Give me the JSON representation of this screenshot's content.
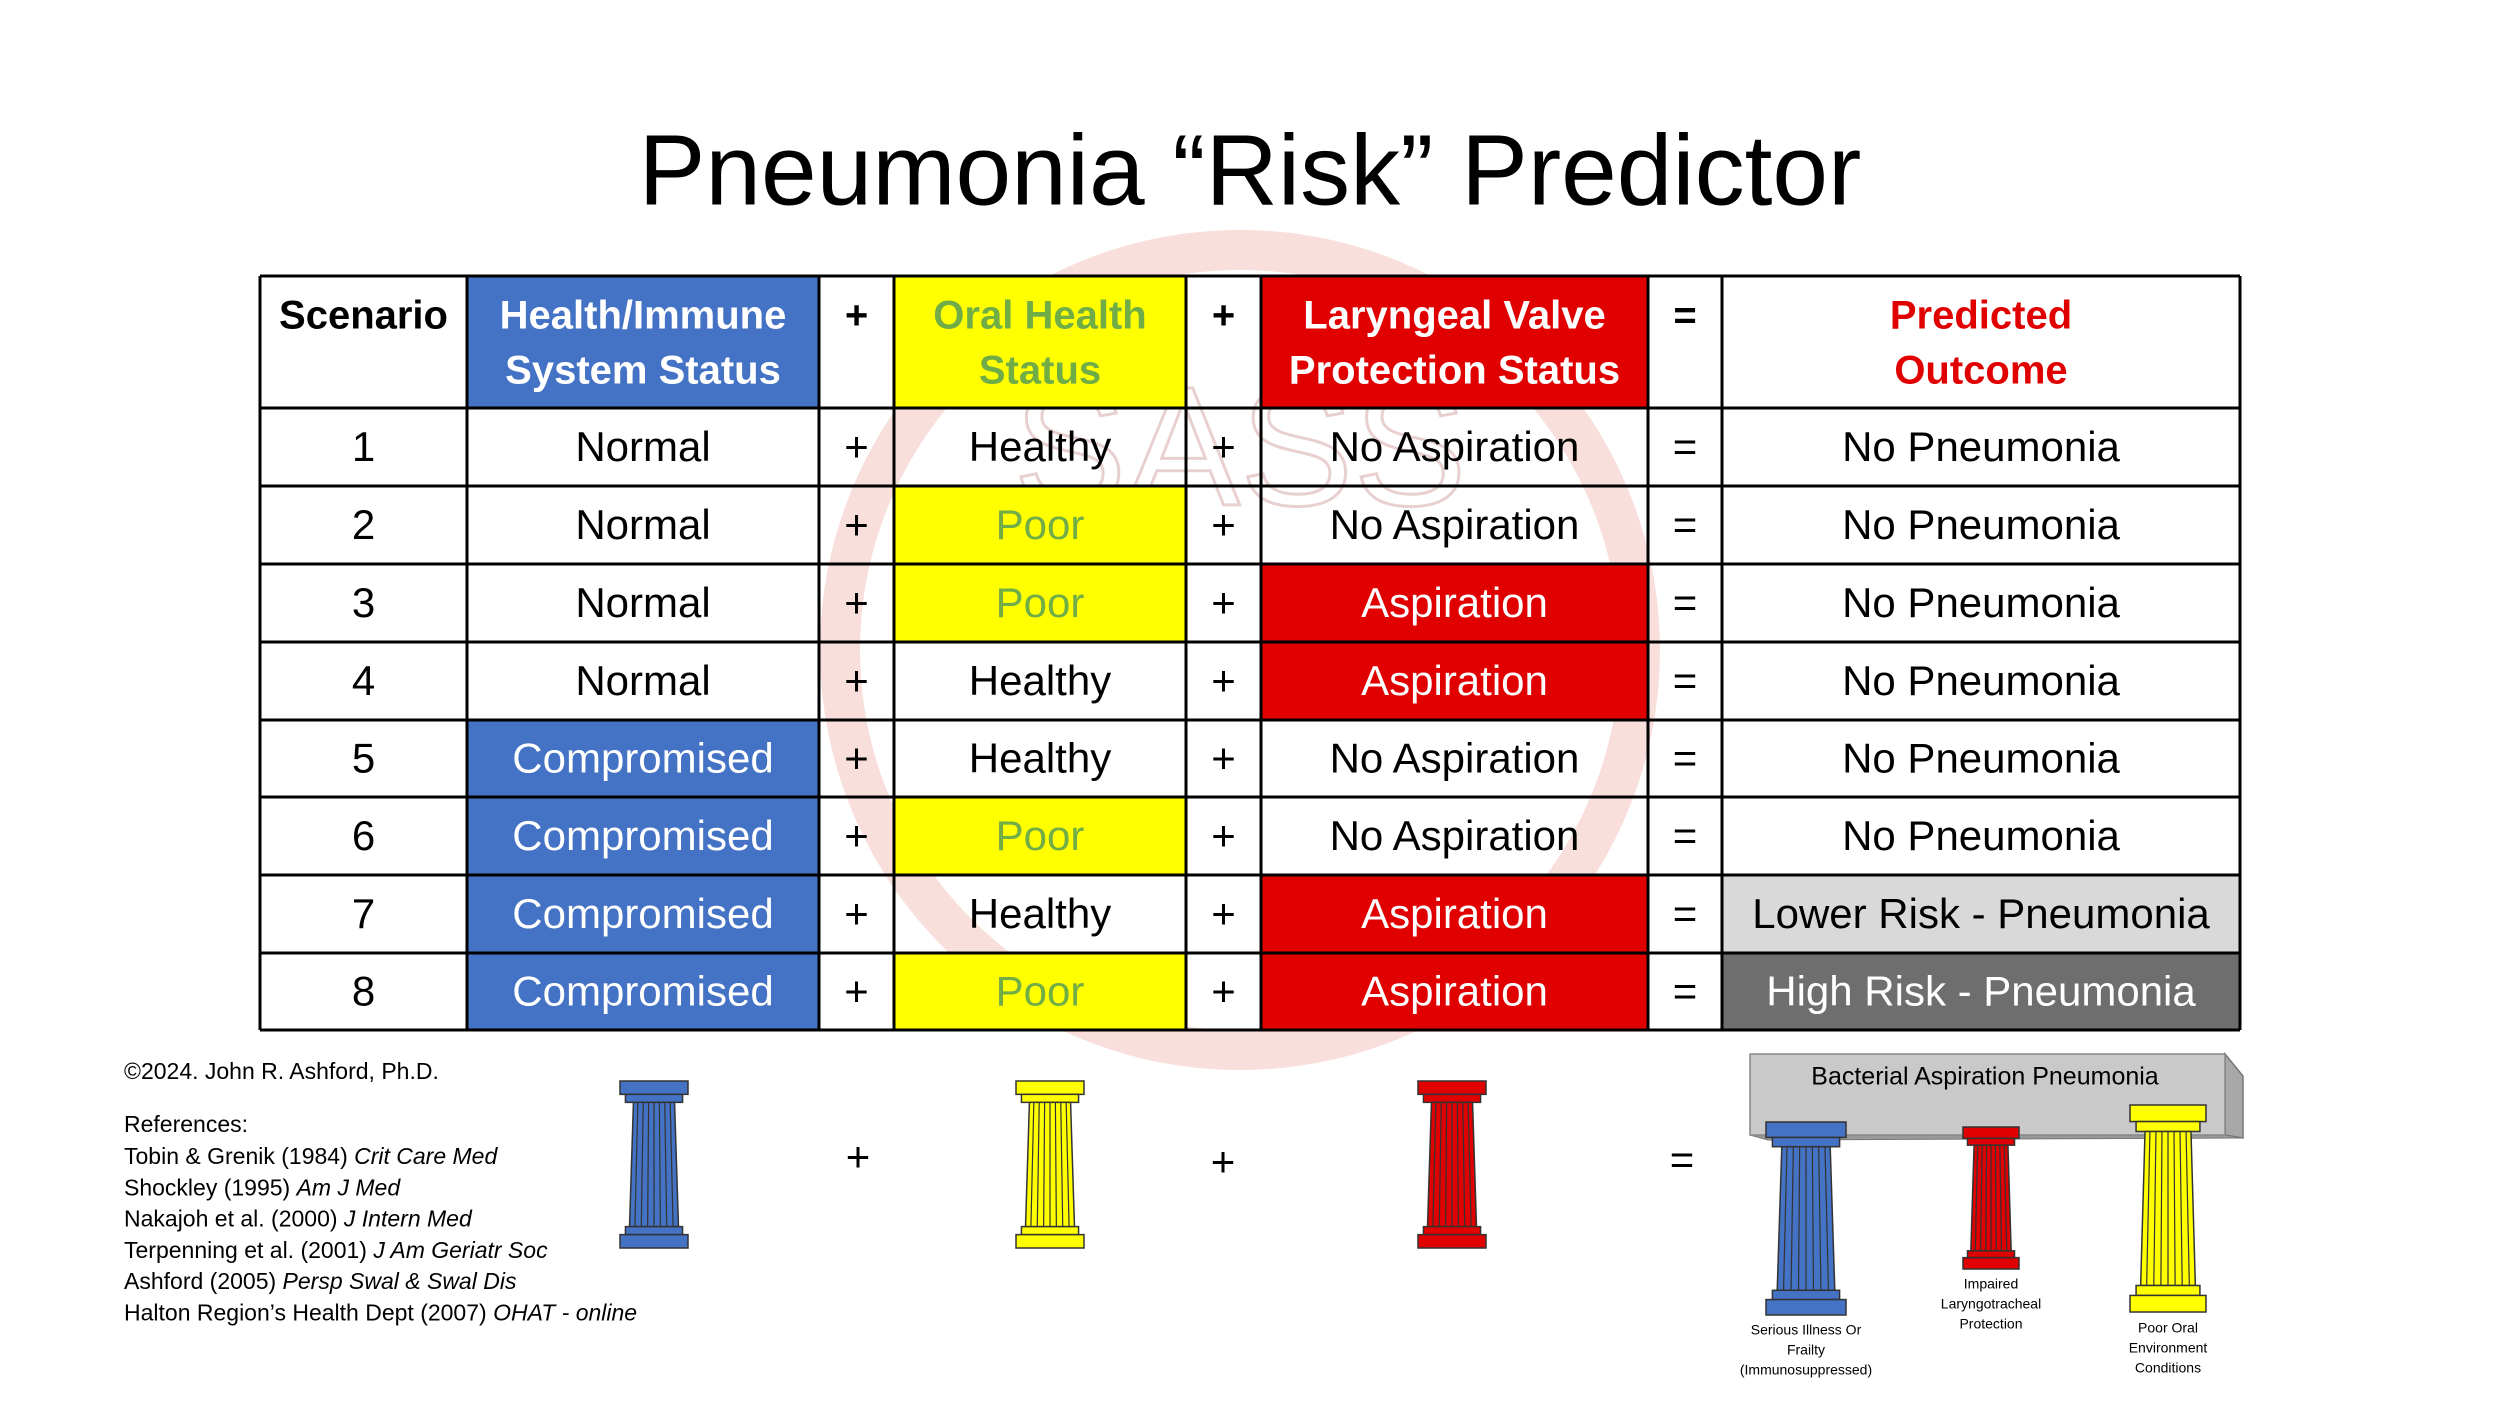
{
  "title": "Pneumonia “Risk” Predictor",
  "watermark": "SASS",
  "table": {
    "header": [
      [
        "Scenario"
      ],
      [
        "Health/Immune",
        "System Status"
      ],
      [
        "+"
      ],
      [
        "Oral Health",
        "Status"
      ],
      [
        "+"
      ],
      [
        "Laryngeal Valve",
        "Protection Status"
      ],
      [
        "="
      ],
      [
        "Predicted",
        "Outcome"
      ]
    ],
    "rows": [
      [
        1,
        "Normal",
        "+",
        "Healthy",
        "+",
        "No Aspiration",
        "=",
        "No Pneumonia"
      ],
      [
        2,
        "Normal",
        "+",
        "Poor",
        "+",
        "No Aspiration",
        "=",
        "No Pneumonia"
      ],
      [
        3,
        "Normal",
        "+",
        "Poor",
        "+",
        "Aspiration",
        "=",
        "No Pneumonia"
      ],
      [
        4,
        "Normal",
        "+",
        "Healthy",
        "+",
        "Aspiration",
        "=",
        "No Pneumonia"
      ],
      [
        5,
        "Compromised",
        "+",
        "Healthy",
        "+",
        "No Aspiration",
        "=",
        "No Pneumonia"
      ],
      [
        6,
        "Compromised",
        "+",
        "Poor",
        "+",
        "No Aspiration",
        "=",
        "No Pneumonia"
      ],
      [
        7,
        "Compromised",
        "+",
        "Healthy",
        "+",
        "Aspiration",
        "=",
        "Lower Risk - Pneumonia"
      ],
      [
        8,
        "Compromised",
        "+",
        "Poor",
        "+",
        "Aspiration",
        "=",
        "High Risk - Pneumonia"
      ]
    ]
  },
  "copyright": "©2024. John R. Ashford, Ph.D.",
  "references_title": "References:",
  "references": [
    {
      "authors": "Tobin & Grenik (1984)",
      "source": "Crit Care Med"
    },
    {
      "authors": "Shockley (1995)",
      "source": "Am J Med"
    },
    {
      "authors": "Nakajoh et al. (2000)",
      "source": "J Intern Med"
    },
    {
      "authors": "Terpenning et al. (2001)",
      "source": "J Am Geriatr Soc"
    },
    {
      "authors": "Ashford (2005)",
      "source": "Persp Swal & Swal Dis"
    },
    {
      "authors": "Halton Region’s Health Dept (2007)",
      "source": "OHAT - online"
    }
  ],
  "equation": {
    "plus_1": "+",
    "plus_2": "+",
    "equals": "="
  },
  "diagram": {
    "beam": "Bacterial Aspiration Pneumonia",
    "pillars": [
      {
        "label": [
          "Serious Illness Or",
          "Frailty",
          "(Immunosuppressed)"
        ]
      },
      {
        "label": [
          "Impaired",
          "Laryngotracheal",
          "Protection"
        ]
      },
      {
        "label": [
          "Poor Oral",
          "Environment",
          "Conditions"
        ]
      }
    ]
  }
}
